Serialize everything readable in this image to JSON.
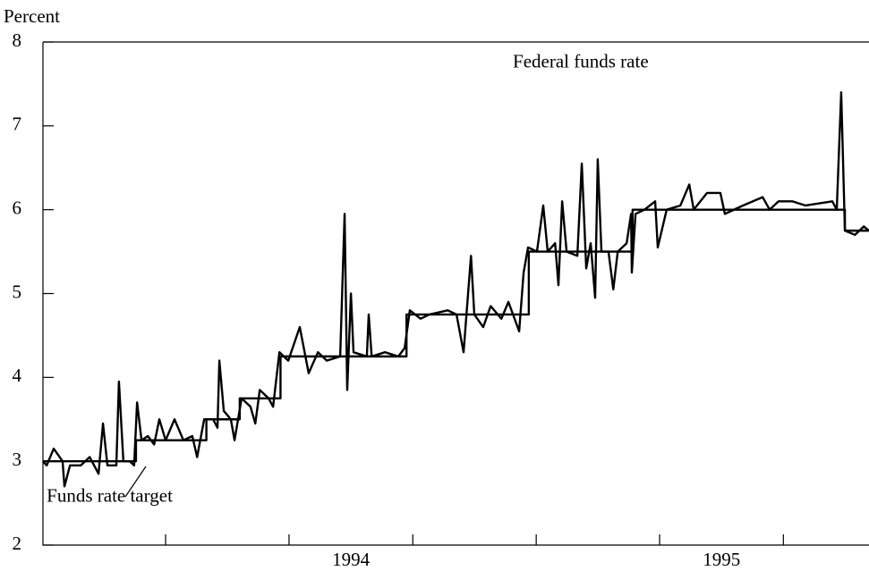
{
  "chart_data": {
    "type": "line",
    "y_axis_label": "Percent",
    "xlim": [
      1993.669,
      1995.898
    ],
    "xticks": [
      1994,
      1994.333,
      1994.667,
      1995,
      1995.333,
      1995.667
    ],
    "xlabels": [
      {
        "value": 1994.5,
        "label": "1994"
      },
      {
        "value": 1995.5,
        "label": "1995"
      }
    ],
    "ylim": [
      2,
      8
    ],
    "yticks": [
      2,
      3,
      4,
      5,
      6,
      7,
      8
    ],
    "annotations": [
      {
        "text": "Federal funds rate",
        "x": 1995.12,
        "y": 7.75
      },
      {
        "text": "Funds rate target",
        "x": 1993.849,
        "y": 2.57
      }
    ],
    "series": [
      {
        "name": "Federal funds rate",
        "color": "#000000",
        "x": [
          1993.669,
          1993.679,
          1993.698,
          1993.722,
          1993.727,
          1993.742,
          1993.771,
          1993.795,
          1993.819,
          1993.831,
          1993.843,
          1993.867,
          1993.874,
          1993.886,
          1993.903,
          1993.915,
          1993.923,
          1993.935,
          1993.952,
          1993.969,
          1993.983,
          1994.0,
          1994.024,
          1994.048,
          1994.072,
          1994.085,
          1994.104,
          1994.128,
          1994.14,
          1994.145,
          1994.157,
          1994.176,
          1994.186,
          1994.205,
          1994.229,
          1994.242,
          1994.254,
          1994.278,
          1994.29,
          1994.307,
          1994.331,
          1994.362,
          1994.386,
          1994.411,
          1994.435,
          1994.471,
          1994.483,
          1994.49,
          1994.5,
          1994.507,
          1994.543,
          1994.548,
          1994.556,
          1994.592,
          1994.628,
          1994.645,
          1994.659,
          1994.688,
          1994.712,
          1994.761,
          1994.785,
          1994.804,
          1994.824,
          1994.833,
          1994.857,
          1994.877,
          1994.906,
          1994.925,
          1994.954,
          1994.966,
          1994.978,
          1995.002,
          1995.019,
          1995.031,
          1995.051,
          1995.06,
          1995.07,
          1995.082,
          1995.111,
          1995.123,
          1995.135,
          1995.147,
          1995.159,
          1995.166,
          1995.176,
          1995.195,
          1995.208,
          1995.22,
          1995.244,
          1995.256,
          1995.258,
          1995.268,
          1995.292,
          1995.321,
          1995.328,
          1995.352,
          1995.389,
          1995.413,
          1995.425,
          1995.461,
          1995.497,
          1995.509,
          1995.558,
          1995.611,
          1995.63,
          1995.654,
          1995.691,
          1995.727,
          1995.799,
          1995.811,
          1995.823,
          1995.833,
          1995.86,
          1995.884,
          1995.898
        ],
        "values": [
          3.0,
          2.95,
          3.15,
          3.0,
          2.7,
          2.95,
          2.95,
          3.05,
          2.85,
          3.45,
          2.95,
          2.95,
          3.95,
          3.0,
          3.0,
          2.95,
          3.7,
          3.25,
          3.3,
          3.2,
          3.5,
          3.25,
          3.5,
          3.25,
          3.3,
          3.05,
          3.5,
          3.5,
          3.4,
          4.2,
          3.6,
          3.5,
          3.25,
          3.75,
          3.65,
          3.45,
          3.85,
          3.75,
          3.65,
          4.3,
          4.2,
          4.6,
          4.05,
          4.3,
          4.2,
          4.25,
          5.95,
          3.85,
          5.0,
          4.3,
          4.25,
          4.75,
          4.25,
          4.3,
          4.25,
          4.35,
          4.8,
          4.7,
          4.75,
          4.8,
          4.75,
          4.3,
          5.45,
          4.75,
          4.6,
          4.85,
          4.7,
          4.9,
          4.55,
          5.25,
          5.55,
          5.5,
          6.05,
          5.5,
          5.6,
          5.1,
          6.1,
          5.5,
          5.45,
          6.55,
          5.3,
          5.6,
          4.95,
          6.6,
          5.5,
          5.5,
          5.05,
          5.5,
          5.6,
          5.95,
          5.25,
          5.95,
          6.0,
          6.1,
          5.55,
          6.0,
          6.05,
          6.3,
          6.0,
          6.2,
          6.2,
          5.95,
          6.05,
          6.15,
          6.0,
          6.1,
          6.1,
          6.05,
          6.1,
          6.0,
          7.4,
          5.75,
          5.7,
          5.8,
          5.75
        ]
      },
      {
        "name": "Funds rate target",
        "color": "#000000",
        "x": [
          1993.669,
          1993.92,
          1993.92,
          1994.11,
          1994.11,
          1994.2,
          1994.2,
          1994.31,
          1994.31,
          1994.65,
          1994.65,
          1994.98,
          1994.98,
          1995.26,
          1995.26,
          1995.833,
          1995.833,
          1995.898
        ],
        "values": [
          3,
          3,
          3.25,
          3.25,
          3.5,
          3.5,
          3.75,
          3.75,
          4.25,
          4.25,
          4.75,
          4.75,
          5.5,
          5.5,
          6,
          6,
          5.75,
          5.75
        ]
      }
    ]
  }
}
